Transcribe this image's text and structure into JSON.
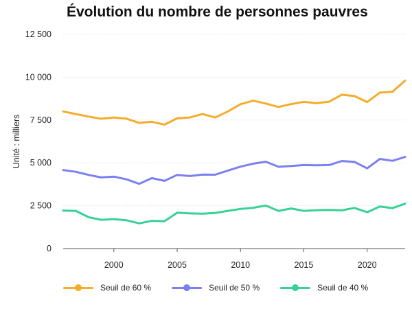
{
  "title": "Évolution du nombre de personnes pauvres",
  "chart_data": {
    "type": "line",
    "title": "Évolution du nombre de personnes pauvres",
    "xlabel": "",
    "ylabel": "Unité : milliers",
    "xlim": [
      1996,
      2023
    ],
    "ylim": [
      0,
      12500
    ],
    "x_ticks": [
      2000,
      2005,
      2010,
      2015,
      2020
    ],
    "y_ticks": [
      0,
      2500,
      5000,
      7500,
      10000,
      12500
    ],
    "x_tick_labels": [
      "2000",
      "2005",
      "2010",
      "2015",
      "2020"
    ],
    "y_tick_labels": [
      "0",
      "2 500",
      "5 000",
      "7 500",
      "10 000",
      "12 500"
    ],
    "grid": "horizontal",
    "legend_position": "bottom",
    "x": [
      1996,
      1997,
      1998,
      1999,
      2000,
      2001,
      2002,
      2003,
      2004,
      2005,
      2006,
      2007,
      2008,
      2009,
      2010,
      2011,
      2012,
      2013,
      2014,
      2015,
      2016,
      2017,
      2018,
      2019,
      2020,
      2021,
      2022,
      2023
    ],
    "series": [
      {
        "name": "Seuil de 60 %",
        "color": "#f5ac2b",
        "values": [
          8000,
          7850,
          7700,
          7580,
          7650,
          7580,
          7330,
          7400,
          7230,
          7600,
          7650,
          7850,
          7650,
          8000,
          8420,
          8630,
          8460,
          8260,
          8430,
          8560,
          8480,
          8570,
          8980,
          8900,
          8550,
          9100,
          9150,
          9800
        ]
      },
      {
        "name": "Seuil de 50 %",
        "color": "#7b7ff0",
        "values": [
          4580,
          4480,
          4300,
          4150,
          4200,
          4040,
          3780,
          4110,
          3950,
          4300,
          4230,
          4320,
          4310,
          4550,
          4780,
          4950,
          5070,
          4770,
          4820,
          4870,
          4860,
          4870,
          5110,
          5060,
          4680,
          5230,
          5120,
          5350
        ]
      },
      {
        "name": "Seuil de 40 %",
        "color": "#37d197",
        "values": [
          2220,
          2200,
          1830,
          1680,
          1720,
          1650,
          1470,
          1620,
          1600,
          2090,
          2050,
          2030,
          2080,
          2200,
          2310,
          2380,
          2510,
          2200,
          2340,
          2200,
          2240,
          2250,
          2230,
          2370,
          2120,
          2450,
          2360,
          2620
        ]
      }
    ]
  }
}
